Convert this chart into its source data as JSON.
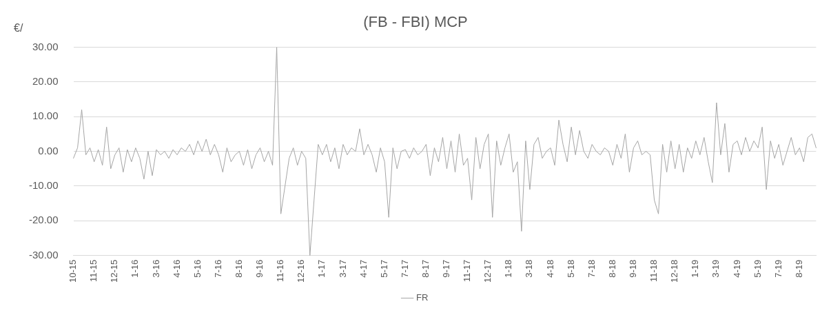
{
  "chart_data": {
    "type": "line",
    "title": "(FB - FBI) MCP",
    "ylabel": "€/",
    "categories": [
      "10-15",
      null,
      null,
      null,
      null,
      "11-15",
      null,
      null,
      null,
      null,
      "12-15",
      null,
      null,
      null,
      null,
      "1-16",
      null,
      null,
      null,
      null,
      "3-16",
      null,
      null,
      null,
      null,
      "4-16",
      null,
      null,
      null,
      null,
      "5-16",
      null,
      null,
      null,
      null,
      "7-16",
      null,
      null,
      null,
      null,
      "8-16",
      null,
      null,
      null,
      null,
      "9-16",
      null,
      null,
      null,
      null,
      "11-16",
      null,
      null,
      null,
      null,
      "12-16",
      null,
      null,
      null,
      null,
      "1-17",
      null,
      null,
      null,
      null,
      "3-17",
      null,
      null,
      null,
      null,
      "4-17",
      null,
      null,
      null,
      null,
      "5-17",
      null,
      null,
      null,
      null,
      "7-17",
      null,
      null,
      null,
      null,
      "8-17",
      null,
      null,
      null,
      null,
      "9-17",
      null,
      null,
      null,
      null,
      "11-17",
      null,
      null,
      null,
      null,
      "12-17",
      null,
      null,
      null,
      null,
      "1-18",
      null,
      null,
      null,
      null,
      "3-18",
      null,
      null,
      null,
      null,
      "4-18",
      null,
      null,
      null,
      null,
      "5-18",
      null,
      null,
      null,
      null,
      "7-18",
      null,
      null,
      null,
      null,
      "8-18",
      null,
      null,
      null,
      null,
      "9-18",
      null,
      null,
      null,
      null,
      "11-18",
      null,
      null,
      null,
      null,
      "12-18",
      null,
      null,
      null,
      null,
      "1-19",
      null,
      null,
      null,
      null,
      "3-19",
      null,
      null,
      null,
      null,
      "4-19",
      null,
      null,
      null,
      null,
      "5-19",
      null,
      null,
      null,
      null,
      "7-19",
      null,
      null,
      null,
      null,
      "8-19",
      null,
      null,
      null,
      null
    ],
    "series": [
      {
        "name": "FR",
        "color": "#a5a5a5",
        "values": [
          -2,
          1,
          12,
          -1,
          1,
          -3,
          0.5,
          -4,
          7,
          -5,
          -1,
          1,
          -6,
          0.5,
          -3,
          1,
          -2,
          -8,
          0,
          -7,
          0.5,
          -1,
          0,
          -2,
          0.5,
          -1,
          1,
          0,
          2,
          -1,
          3,
          0,
          3.5,
          -1,
          2,
          -1,
          -6,
          1,
          -3,
          -1,
          0,
          -4,
          0.5,
          -5,
          -1,
          1,
          -3,
          0,
          -4,
          30,
          -18,
          -10,
          -2,
          1,
          -4,
          0,
          -2,
          -30,
          -14,
          2,
          -1,
          2,
          -3,
          1,
          -5,
          2,
          -1,
          1,
          0,
          6.5,
          -1,
          2,
          -1,
          -6,
          1,
          -3,
          -19,
          1,
          -5,
          0,
          0.5,
          -2,
          1,
          -1,
          0,
          2,
          -7,
          1,
          -3,
          4,
          -5,
          3,
          -6,
          5,
          -4,
          -2,
          -14,
          4,
          -5,
          2,
          5,
          -19,
          3,
          -4,
          1,
          5,
          -6,
          -3,
          -23,
          3,
          -11,
          2,
          4,
          -2,
          0,
          1,
          -4,
          9,
          2,
          -3,
          7,
          -1,
          6,
          0,
          -2,
          2,
          0,
          -1,
          1,
          0,
          -4,
          2,
          -2,
          5,
          -6,
          1,
          3,
          -1,
          0,
          -1,
          -14,
          -18,
          2,
          -6,
          3,
          -5,
          2,
          -6,
          1,
          -2,
          3,
          -1,
          4,
          -3,
          -9,
          14,
          -1,
          8,
          -6,
          2,
          3,
          -1,
          4,
          0,
          3,
          1,
          7,
          -11,
          3,
          -2,
          2,
          -4,
          0,
          4,
          -1,
          1,
          -3,
          4,
          5,
          1
        ]
      }
    ],
    "ylim": [
      -30,
      30
    ],
    "yticks": [
      {
        "value": -30,
        "label": "-30.00"
      },
      {
        "value": -20,
        "label": "-20.00"
      },
      {
        "value": -10,
        "label": "-10.00"
      },
      {
        "value": 0,
        "label": "0.00"
      },
      {
        "value": 10,
        "label": "10.00"
      },
      {
        "value": 20,
        "label": "20.00"
      },
      {
        "value": 30,
        "label": "30.00"
      }
    ],
    "grid": "y",
    "legend": "bottom",
    "marker": "none",
    "line_style": "solid"
  }
}
